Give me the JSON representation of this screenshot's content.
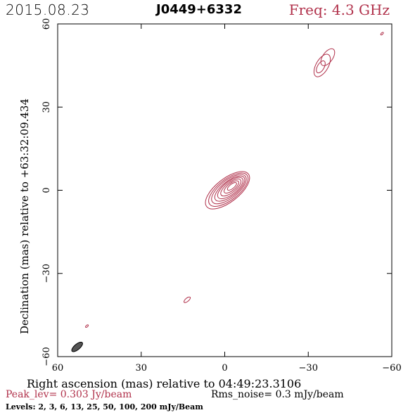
{
  "header": {
    "date": "2015.08.23",
    "source": "J0449+6332",
    "freq": "Freq: 4.3 GHz"
  },
  "footer": {
    "peak": "Peak_lev=  0.303 Jy/beam",
    "rms": "Rms_noise=  0.3 mJy/beam",
    "levels": "Levels:  2,  3,  6,  13,  25,  50, 100, 200 mJy/Beam"
  },
  "chart_data": {
    "type": "contour",
    "xlabel": "Right ascension (mas) relative to 04:49:23.3106",
    "ylabel": "Declination (mas) relative to +63:32:09.434",
    "xlim": [
      60,
      -60
    ],
    "ylim": [
      -60,
      60
    ],
    "xticks": [
      60,
      30,
      0,
      -30,
      -60
    ],
    "yticks": [
      60,
      30,
      0,
      -30,
      -60
    ],
    "xtick_labels": [
      "60",
      "30",
      "0",
      "−30",
      "−60"
    ],
    "ytick_labels": [
      "60",
      "30",
      "0",
      "−30",
      "−60"
    ],
    "contour_color": "#b0304a",
    "beam_color": "#555555",
    "components": [
      {
        "name": "core",
        "rings": [
          {
            "cx": -1,
            "cy": 0,
            "rx": 9.5,
            "ry": 4.2,
            "angle": 38
          },
          {
            "cx": -1.3,
            "cy": 0.2,
            "rx": 8.5,
            "ry": 3.7,
            "angle": 38
          },
          {
            "cx": -1.5,
            "cy": 0.4,
            "rx": 7.5,
            "ry": 3.2,
            "angle": 38
          },
          {
            "cx": -1.8,
            "cy": 0.6,
            "rx": 6.5,
            "ry": 2.7,
            "angle": 38
          },
          {
            "cx": -2.0,
            "cy": 0.8,
            "rx": 5.5,
            "ry": 2.3,
            "angle": 38
          },
          {
            "cx": -2.2,
            "cy": 1.0,
            "rx": 4.4,
            "ry": 1.8,
            "angle": 38
          },
          {
            "cx": -2.4,
            "cy": 1.2,
            "rx": 3.2,
            "ry": 1.3,
            "angle": 38
          },
          {
            "cx": -2.6,
            "cy": 1.4,
            "rx": 2.0,
            "ry": 0.8,
            "angle": 38
          }
        ]
      },
      {
        "name": "jet-knot",
        "rings": [
          {
            "cx": -35,
            "cy": 45,
            "rx": 4.5,
            "ry": 2.2,
            "angle": 60
          },
          {
            "cx": -37,
            "cy": 48,
            "rx": 3.5,
            "ry": 1.8,
            "angle": 55
          },
          {
            "cx": -34.5,
            "cy": 44.5,
            "rx": 2.4,
            "ry": 1.2,
            "angle": 60
          }
        ]
      },
      {
        "name": "blob-ne",
        "rings": [
          {
            "cx": -56.5,
            "cy": 56.5,
            "rx": 0.6,
            "ry": 0.3,
            "angle": 45
          }
        ]
      },
      {
        "name": "blob-sw1",
        "rings": [
          {
            "cx": 13.5,
            "cy": -39.5,
            "rx": 1.4,
            "ry": 0.6,
            "angle": 40
          }
        ]
      },
      {
        "name": "blob-sw2",
        "rings": [
          {
            "cx": 49.5,
            "cy": -49,
            "rx": 0.6,
            "ry": 0.3,
            "angle": 40
          }
        ]
      }
    ],
    "beam": {
      "cx": 53,
      "cy": -56.5,
      "rx": 2.4,
      "ry": 1.0,
      "angle": 40
    }
  }
}
